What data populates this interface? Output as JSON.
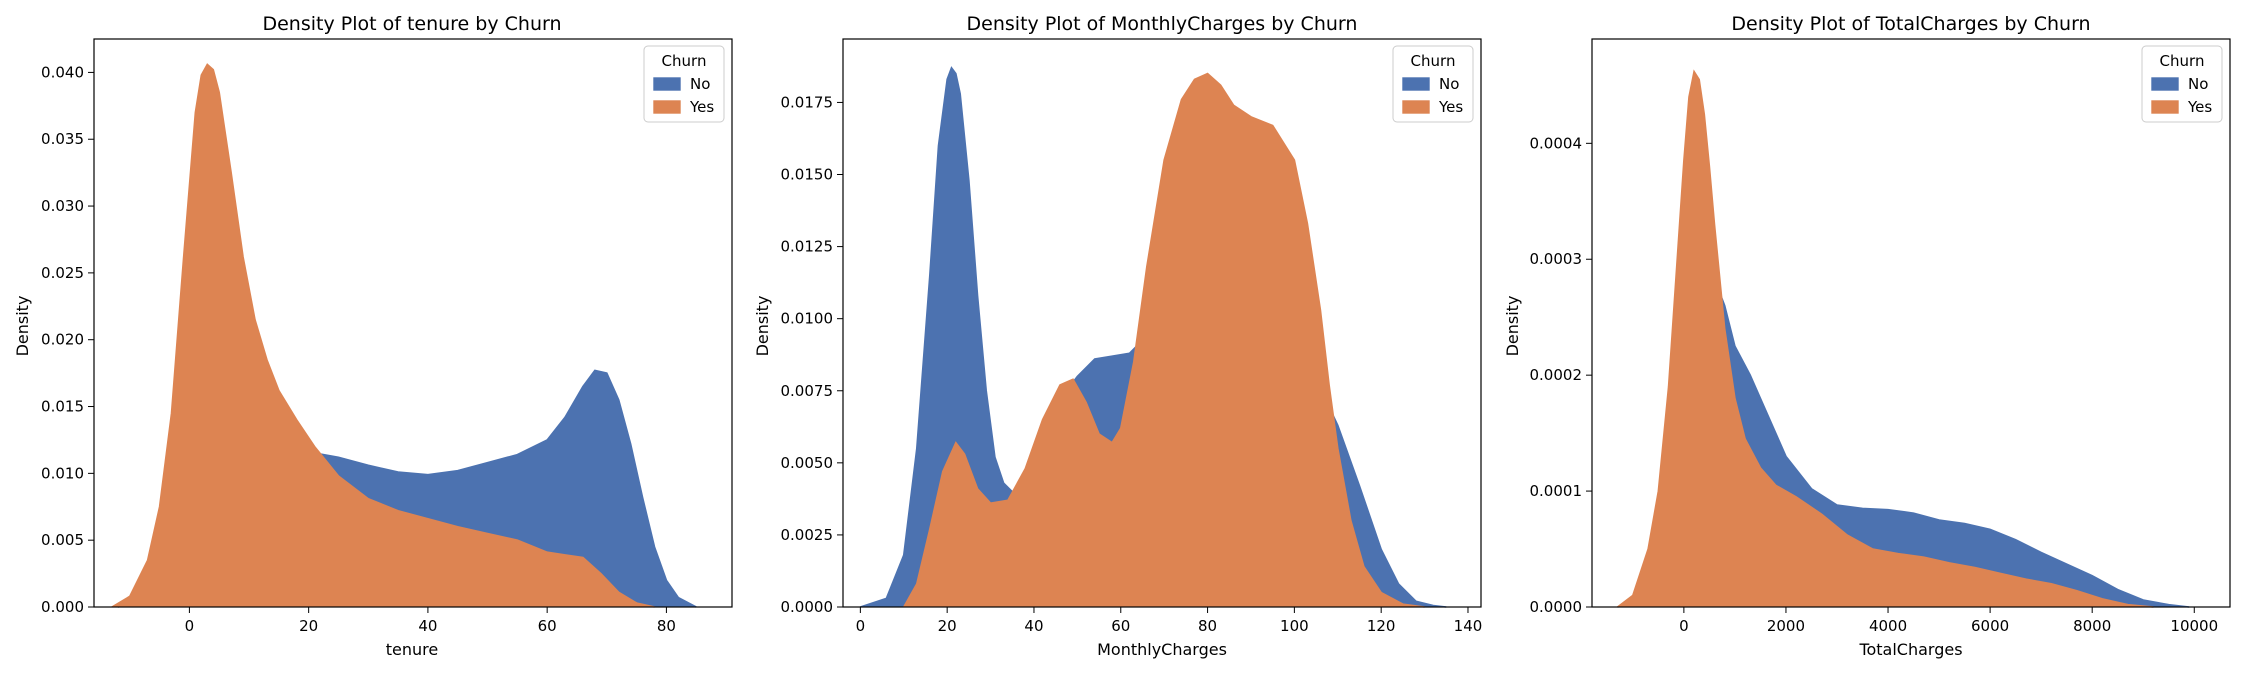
{
  "figure": {
    "colors": {
      "No": "#4c72b0",
      "Yes": "#dd8452",
      "fill_opacity": 0.3
    }
  },
  "chart_data": [
    {
      "type": "area",
      "title": "Density Plot of tenure by Churn",
      "xlabel": "tenure",
      "ylabel": "Density",
      "xlim": [
        -16,
        91
      ],
      "ylim": [
        0,
        0.0425
      ],
      "xticks": [
        0,
        20,
        40,
        60,
        80
      ],
      "xtick_labels": [
        "0",
        "20",
        "40",
        "60",
        "80"
      ],
      "yticks": [
        0.0,
        0.005,
        0.01,
        0.015,
        0.02,
        0.025,
        0.03,
        0.035,
        0.04
      ],
      "ytick_labels": [
        "0.000",
        "0.005",
        "0.010",
        "0.015",
        "0.020",
        "0.025",
        "0.030",
        "0.035",
        "0.040"
      ],
      "legend": {
        "title": "Churn",
        "entries": [
          "No",
          "Yes"
        ],
        "position": "upper right"
      },
      "series": [
        {
          "name": "No",
          "x": [
            -12,
            -8,
            -5,
            -2,
            0,
            2,
            4,
            6,
            8,
            10,
            13,
            16,
            20,
            25,
            30,
            35,
            40,
            45,
            50,
            55,
            60,
            63,
            66,
            68,
            70,
            72,
            74,
            76,
            78,
            80,
            82,
            85
          ],
          "y": [
            0,
            0.0003,
            0.0012,
            0.0035,
            0.0065,
            0.011,
            0.0143,
            0.0153,
            0.0152,
            0.0143,
            0.013,
            0.0121,
            0.0116,
            0.0112,
            0.0106,
            0.0101,
            0.0099,
            0.0102,
            0.0108,
            0.0114,
            0.0125,
            0.0142,
            0.0165,
            0.0177,
            0.0175,
            0.0155,
            0.0122,
            0.0082,
            0.0045,
            0.002,
            0.0007,
            0
          ]
        },
        {
          "name": "Yes",
          "x": [
            -13,
            -10,
            -7,
            -5,
            -3,
            -1,
            1,
            2,
            3,
            4,
            5,
            7,
            9,
            11,
            13,
            15,
            18,
            21,
            25,
            30,
            35,
            40,
            45,
            50,
            55,
            60,
            63,
            66,
            69,
            72,
            75,
            78
          ],
          "y": [
            0,
            0.0008,
            0.0035,
            0.0075,
            0.0145,
            0.026,
            0.037,
            0.0398,
            0.0406,
            0.0402,
            0.0385,
            0.0325,
            0.0262,
            0.0215,
            0.0185,
            0.0162,
            0.014,
            0.012,
            0.0098,
            0.0081,
            0.0072,
            0.0066,
            0.006,
            0.0055,
            0.005,
            0.0041,
            0.0039,
            0.0037,
            0.0025,
            0.0011,
            0.0003,
            0
          ]
        }
      ]
    },
    {
      "type": "area",
      "title": "Density Plot of MonthlyCharges by Churn",
      "xlabel": "MonthlyCharges",
      "ylabel": "Density",
      "xlim": [
        -4,
        143
      ],
      "ylim": [
        0,
        0.0197
      ],
      "xticks": [
        0,
        20,
        40,
        60,
        80,
        100,
        120,
        140
      ],
      "xtick_labels": [
        "0",
        "20",
        "40",
        "60",
        "80",
        "100",
        "120",
        "140"
      ],
      "yticks": [
        0.0,
        0.0025,
        0.005,
        0.0075,
        0.01,
        0.0125,
        0.015,
        0.0175
      ],
      "ytick_labels": [
        "0.0000",
        "0.0025",
        "0.0050",
        "0.0075",
        "0.0100",
        "0.0125",
        "0.0150",
        "0.0175"
      ],
      "legend": {
        "title": "Churn",
        "entries": [
          "No",
          "Yes"
        ],
        "position": "upper right"
      },
      "series": [
        {
          "name": "No",
          "x": [
            0,
            6,
            10,
            13,
            16,
            18,
            20,
            21,
            22,
            23,
            25,
            27,
            29,
            31,
            33,
            35,
            37,
            40,
            43,
            46,
            50,
            54,
            58,
            62,
            66,
            70,
            74,
            78,
            82,
            86,
            90,
            95,
            100,
            105,
            110,
            115,
            120,
            124,
            128,
            132,
            135
          ],
          "y": [
            0,
            0.0003,
            0.0018,
            0.0055,
            0.0115,
            0.016,
            0.0183,
            0.0187,
            0.0185,
            0.0178,
            0.0148,
            0.0108,
            0.0075,
            0.0052,
            0.0043,
            0.004,
            0.0042,
            0.0051,
            0.0062,
            0.0072,
            0.008,
            0.0086,
            0.0087,
            0.0088,
            0.0094,
            0.0102,
            0.0108,
            0.0111,
            0.0112,
            0.0111,
            0.0107,
            0.0099,
            0.009,
            0.0079,
            0.0063,
            0.0042,
            0.002,
            0.0008,
            0.0002,
            5e-05,
            0
          ]
        },
        {
          "name": "Yes",
          "x": [
            10,
            13,
            16,
            19,
            22,
            24,
            27,
            30,
            34,
            38,
            42,
            46,
            49,
            52,
            55,
            58,
            60,
            63,
            66,
            70,
            74,
            77,
            80,
            83,
            86,
            90,
            95,
            100,
            103,
            106,
            108,
            110,
            113,
            116,
            120,
            125,
            130
          ],
          "y": [
            0,
            0.0008,
            0.0027,
            0.0047,
            0.0057,
            0.0053,
            0.0041,
            0.0036,
            0.0037,
            0.0048,
            0.0065,
            0.0077,
            0.0079,
            0.0071,
            0.006,
            0.0057,
            0.0062,
            0.0085,
            0.0118,
            0.0155,
            0.0176,
            0.0183,
            0.0185,
            0.0181,
            0.0174,
            0.017,
            0.0167,
            0.0155,
            0.0133,
            0.0103,
            0.0077,
            0.0055,
            0.003,
            0.0014,
            0.0005,
            0.0001,
            0
          ]
        }
      ]
    },
    {
      "type": "area",
      "title": "Density Plot of TotalCharges by Churn",
      "xlabel": "TotalCharges",
      "ylabel": "Density",
      "xlim": [
        -1800,
        10700
      ],
      "ylim": [
        0,
        0.00049
      ],
      "xticks": [
        0,
        2000,
        4000,
        6000,
        8000,
        10000
      ],
      "xtick_labels": [
        "0",
        "2000",
        "4000",
        "6000",
        "8000",
        "10000"
      ],
      "yticks": [
        0.0,
        0.0001,
        0.0002,
        0.0003,
        0.0004
      ],
      "ytick_labels": [
        "0.0000",
        "0.0001",
        "0.0002",
        "0.0003",
        "0.0004"
      ],
      "legend": {
        "title": "Churn",
        "entries": [
          "No",
          "Yes"
        ],
        "position": "upper right"
      },
      "series": [
        {
          "name": "No",
          "x": [
            -1300,
            -1000,
            -700,
            -400,
            -200,
            0,
            200,
            400,
            500,
            600,
            800,
            1000,
            1300,
            1600,
            2000,
            2500,
            3000,
            3500,
            4000,
            4500,
            5000,
            5500,
            6000,
            6500,
            7000,
            7500,
            8000,
            8500,
            9000,
            9500,
            9900
          ],
          "y": [
            0,
            3e-06,
            1.5e-05,
            5e-05,
            0.00011,
            0.000185,
            0.00026,
            0.000285,
            0.000287,
            0.000283,
            0.00026,
            0.000225,
            0.0002,
            0.00017,
            0.00013,
            0.000102,
            8.8e-05,
            8.5e-05,
            8.4e-05,
            8.1e-05,
            7.5e-05,
            7.2e-05,
            6.7e-05,
            5.8e-05,
            4.7e-05,
            3.7e-05,
            2.7e-05,
            1.5e-05,
            6e-06,
            2e-06,
            0
          ]
        },
        {
          "name": "Yes",
          "x": [
            -1300,
            -1000,
            -700,
            -500,
            -300,
            -100,
            0,
            100,
            200,
            300,
            400,
            500,
            600,
            800,
            1000,
            1200,
            1500,
            1800,
            2200,
            2700,
            3200,
            3700,
            4200,
            4700,
            5200,
            5700,
            6200,
            6700,
            7200,
            7700,
            8200,
            8700,
            9200
          ],
          "y": [
            0,
            1e-05,
            5e-05,
            0.0001,
            0.00019,
            0.00032,
            0.000385,
            0.00044,
            0.000462,
            0.000455,
            0.000425,
            0.00038,
            0.00033,
            0.00024,
            0.00018,
            0.000145,
            0.00012,
            0.000105,
            9.5e-05,
            8e-05,
            6.2e-05,
            5e-05,
            4.6e-05,
            4.3e-05,
            3.8e-05,
            3.4e-05,
            2.9e-05,
            2.4e-05,
            2e-05,
            1.4e-05,
            7e-06,
            2e-06,
            0
          ]
        }
      ]
    }
  ]
}
